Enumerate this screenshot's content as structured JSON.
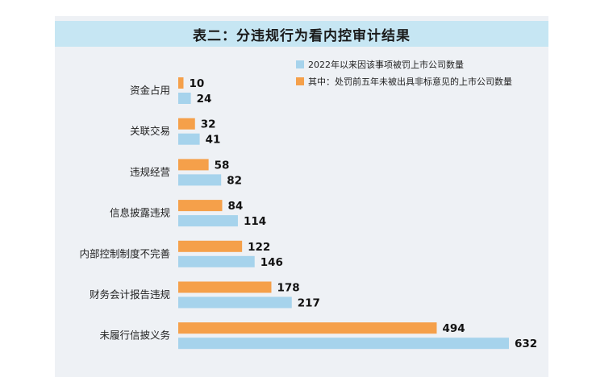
{
  "chart_data": {
    "type": "bar",
    "orientation": "horizontal",
    "title": "表二：分违规行为看内控审计结果",
    "categories": [
      "资金占用",
      "关联交易",
      "违规经营",
      "信息披露违规",
      "内部控制制度不完善",
      "财务会计报告违规",
      "未履行信披义务"
    ],
    "series": [
      {
        "name": "其中：处罚前五年未被出具非标意见的上市公司数量",
        "color": "#f5a04a",
        "values": [
          10,
          32,
          58,
          84,
          122,
          178,
          494
        ]
      },
      {
        "name": "2022年以来因该事项被罚上市公司数量",
        "color": "#a6d3ec",
        "values": [
          24,
          41,
          82,
          114,
          146,
          217,
          632
        ]
      }
    ],
    "xlim": [
      0,
      632
    ],
    "grid": false,
    "legend_position": "top-right"
  }
}
